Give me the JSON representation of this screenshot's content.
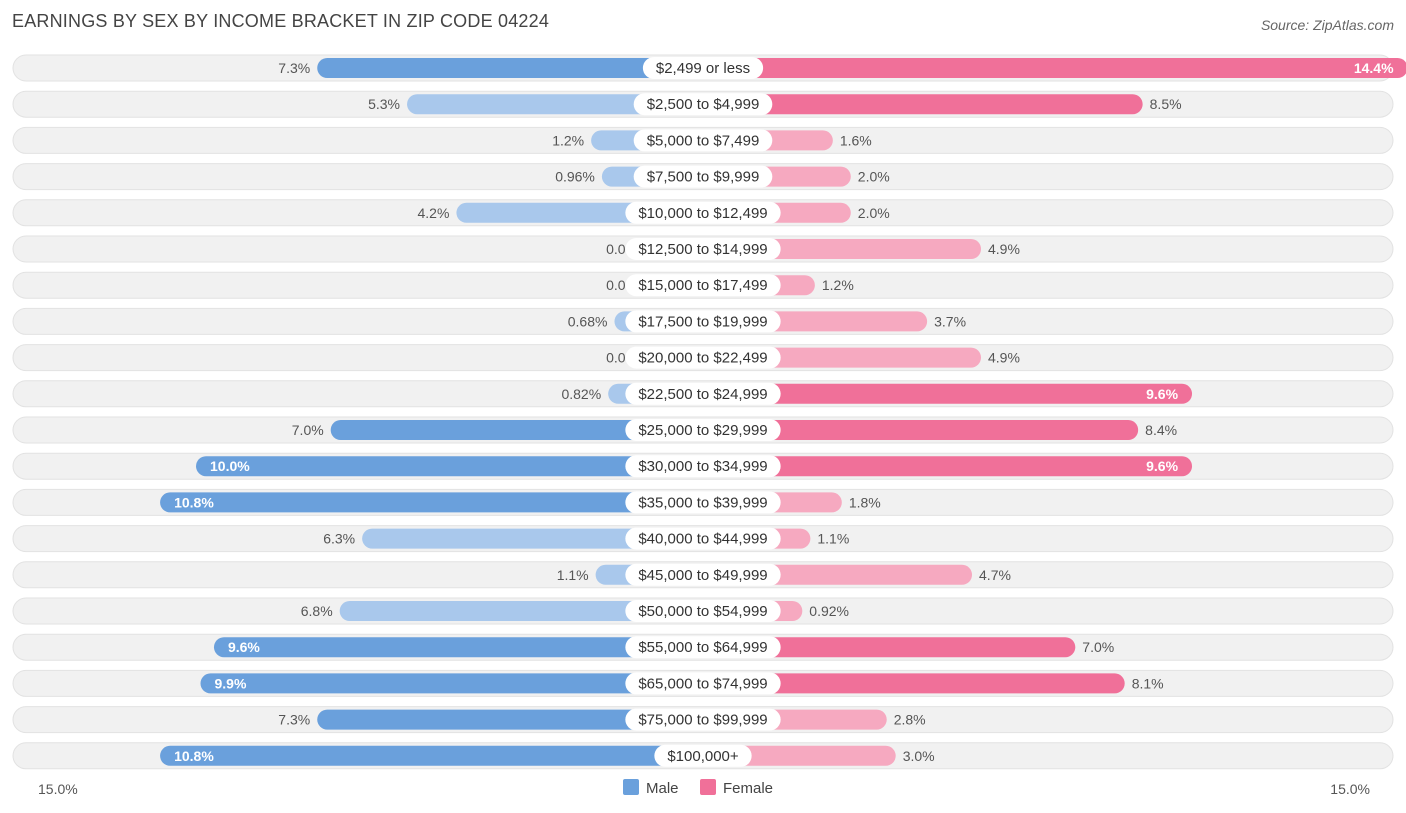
{
  "chart_data": {
    "type": "bar",
    "orientation": "horizontal-diverging",
    "title": "EARNINGS BY SEX BY INCOME BRACKET IN ZIP CODE 04224",
    "source": "Source: ZipAtlas.com",
    "categories": [
      "$2,499 or less",
      "$2,500 to $4,999",
      "$5,000 to $7,499",
      "$7,500 to $9,999",
      "$10,000 to $12,499",
      "$12,500 to $14,999",
      "$15,000 to $17,499",
      "$17,500 to $19,999",
      "$20,000 to $22,499",
      "$22,500 to $24,999",
      "$25,000 to $29,999",
      "$30,000 to $34,999",
      "$35,000 to $39,999",
      "$40,000 to $44,999",
      "$45,000 to $49,999",
      "$50,000 to $54,999",
      "$55,000 to $64,999",
      "$65,000 to $74,999",
      "$75,000 to $99,999",
      "$100,000+"
    ],
    "series": [
      {
        "name": "Male",
        "values": [
          7.3,
          5.3,
          1.2,
          0.96,
          4.2,
          0.0,
          0.0,
          0.68,
          0.0,
          0.82,
          7.0,
          10.0,
          10.8,
          6.3,
          1.1,
          6.8,
          9.6,
          9.9,
          7.3,
          10.8
        ],
        "labels": [
          "7.3%",
          "5.3%",
          "1.2%",
          "0.96%",
          "4.2%",
          "0.0%",
          "0.0%",
          "0.68%",
          "0.0%",
          "0.82%",
          "7.0%",
          "10.0%",
          "10.8%",
          "6.3%",
          "1.1%",
          "6.8%",
          "9.6%",
          "9.9%",
          "7.3%",
          "10.8%"
        ]
      },
      {
        "name": "Female",
        "values": [
          14.4,
          8.5,
          1.6,
          2.0,
          2.0,
          4.9,
          1.2,
          3.7,
          4.9,
          9.6,
          8.4,
          9.6,
          1.8,
          1.1,
          4.7,
          0.92,
          7.0,
          8.1,
          2.8,
          3.0
        ],
        "labels": [
          "14.4%",
          "8.5%",
          "1.6%",
          "2.0%",
          "2.0%",
          "4.9%",
          "1.2%",
          "3.7%",
          "4.9%",
          "9.6%",
          "8.4%",
          "9.6%",
          "1.8%",
          "1.1%",
          "4.7%",
          "0.92%",
          "7.0%",
          "8.1%",
          "2.8%",
          "3.0%"
        ]
      }
    ],
    "xlim": [
      -15,
      15
    ],
    "axis_labels": {
      "left": "15.0%",
      "right": "15.0%"
    },
    "legend": [
      "Male",
      "Female"
    ],
    "legend_position": "bottom-center",
    "colors": {
      "male_strong": "#6aa0dc",
      "male_light": "#a9c8ec",
      "female_strong": "#f07099",
      "female_light": "#f6a9c0",
      "row_bg": "#f1f1f1",
      "row_border": "#e2e2e2"
    }
  }
}
